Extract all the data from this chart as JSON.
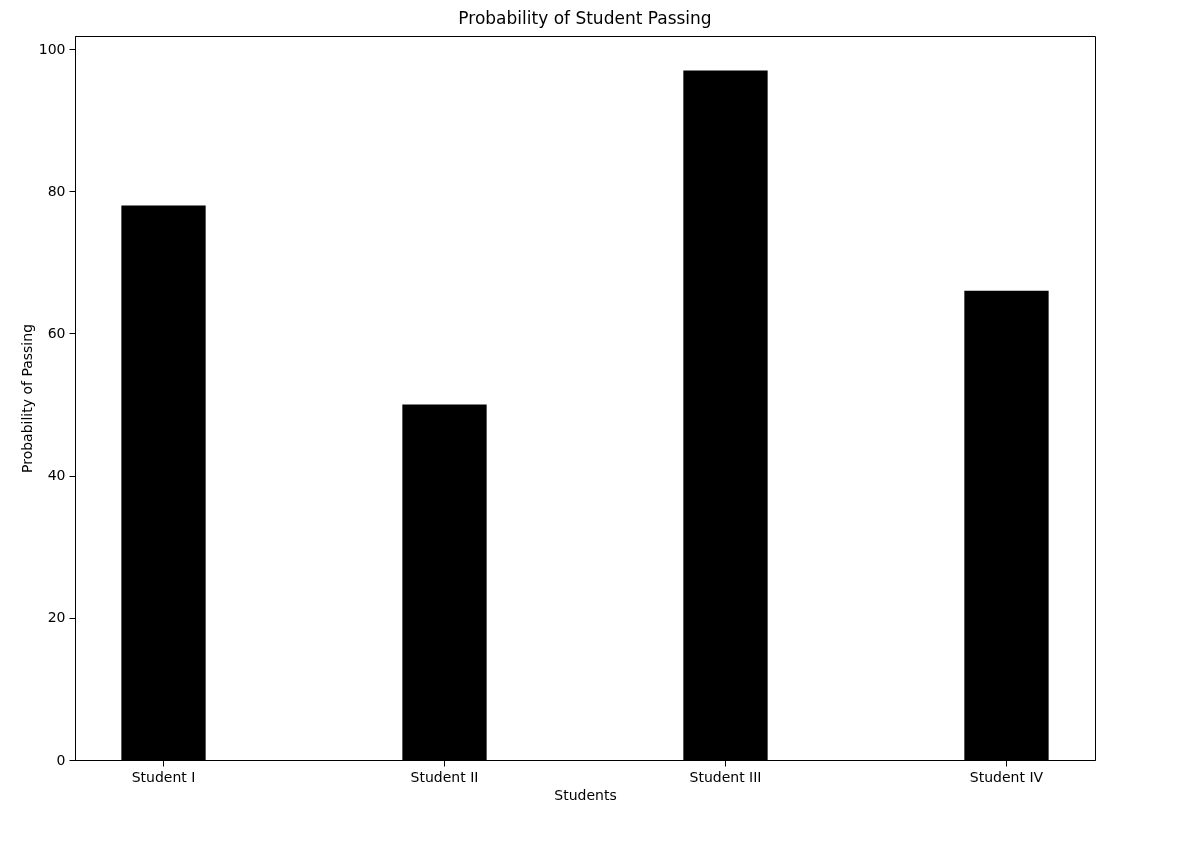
{
  "chart_data": {
    "type": "bar",
    "title": "Probability of Student Passing",
    "xlabel": "Students",
    "ylabel": "Probability of Passing",
    "categories": [
      "Student I",
      "Student II",
      "Student III",
      "Student IV"
    ],
    "values": [
      78,
      50,
      97,
      66
    ],
    "color": "#000000",
    "ylim": [
      0,
      101.85
    ],
    "yticks": [
      0,
      20,
      40,
      60,
      80,
      100
    ],
    "grid": false
  }
}
